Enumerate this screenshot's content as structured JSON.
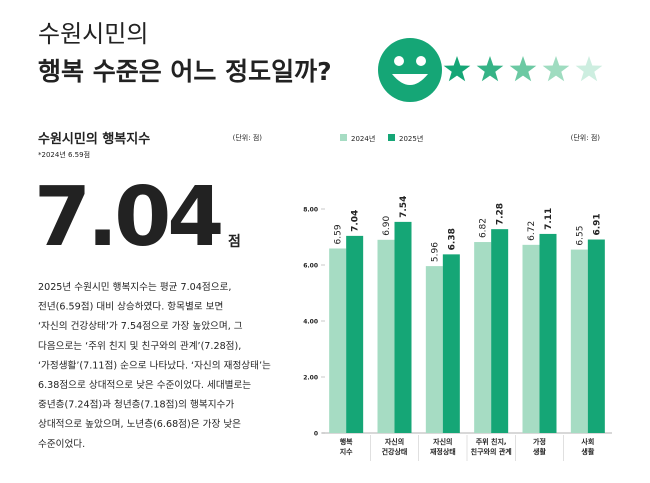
{
  "header": {
    "line1": "수원시민의",
    "line2": "행복 수준은 어느 정도일까?"
  },
  "summary": {
    "title": "수원시민의 행복지수",
    "unit": "(단위: 점)",
    "note": "*2024년 6.59점",
    "big_value": "7.04",
    "big_unit": "점",
    "body": [
      "2025년 수원시민 행복지수는 평균 7.04점으로,",
      "전년(6.59점) 대비 상승하였다. 항목별로 보면",
      "‘자신의 건강상태’가 7.54점으로 가장 높았으며, 그",
      "다음으로는 ‘주위 친지 및 친구와의 관계’(7.28점),",
      "‘가정생활’(7.11점) 순으로 나타났다. ‘자신의 재정상태’는",
      "6.38점으로 상대적으로 낮은 수준이었다. 세대별로는",
      "중년층(7.24점)과 청년층(7.18점)의 행복지수가",
      "상대적으로 높았으며, 노년층(6.68점)은 가장 낮은",
      "수준이었다."
    ]
  },
  "chart_data": {
    "type": "bar",
    "unit": "(단위: 점)",
    "categories": [
      [
        "행복",
        "지수"
      ],
      [
        "자신의",
        "건강상태"
      ],
      [
        "자신의",
        "재정상태"
      ],
      [
        "주위 친지,",
        "친구와의 관계"
      ],
      [
        "가정",
        "생활"
      ],
      [
        "사회",
        "생활"
      ]
    ],
    "series": [
      {
        "name": "2024년",
        "color": "#a6dcc3",
        "values": [
          6.59,
          6.9,
          5.96,
          6.82,
          6.72,
          6.55
        ],
        "value_labels": [
          "6.59",
          "6.90",
          "5.96",
          "6.82",
          "6.72",
          "6.55"
        ]
      },
      {
        "name": "2025년",
        "color": "#15a676",
        "values": [
          7.04,
          7.54,
          6.38,
          7.28,
          7.11,
          6.91
        ],
        "value_labels": [
          "7.04",
          "7.54",
          "6.38",
          "7.28",
          "7.11",
          "6.91"
        ]
      }
    ],
    "ylim": [
      0,
      8
    ],
    "yticks": [
      0,
      {
        "value": 2,
        "label": "2.00"
      },
      {
        "value": 4,
        "label": "4.00"
      },
      {
        "value": 6,
        "label": "6.00"
      },
      {
        "value": 8,
        "label": "8.00"
      }
    ]
  }
}
